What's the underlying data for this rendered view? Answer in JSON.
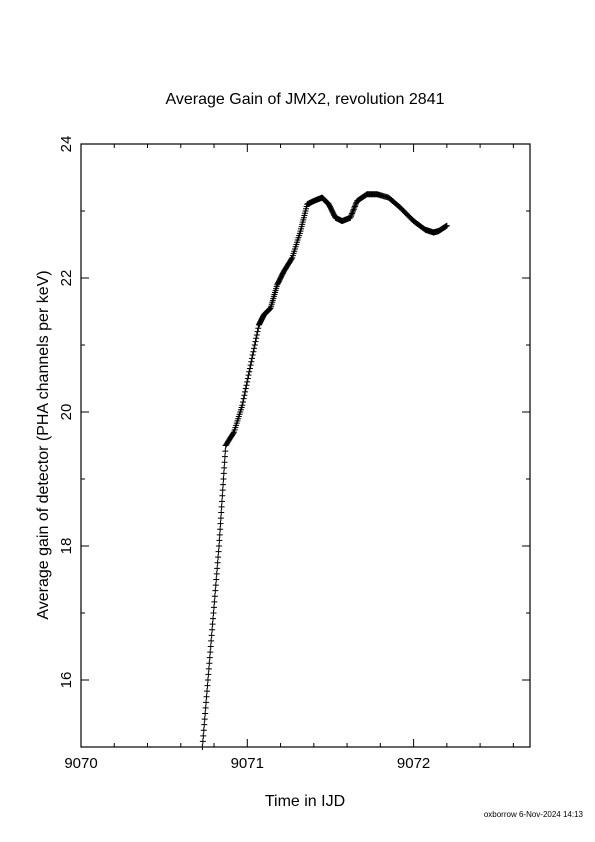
{
  "chart_data": {
    "type": "scatter",
    "marker": "+",
    "title": "Average Gain of JMX2, revolution 2841",
    "xlabel": "Time in IJD",
    "ylabel": "Average gain of detector (PHA channels per keV)",
    "xlim": [
      9070,
      9072.7
    ],
    "ylim": [
      15,
      24
    ],
    "x_ticks": [
      9070,
      9071,
      9072
    ],
    "y_ticks": [
      16,
      18,
      20,
      22,
      24
    ],
    "x_tick_labels": [
      "9070",
      "9071",
      "9072"
    ],
    "y_tick_labels": [
      "16",
      "18",
      "20",
      "22",
      "24"
    ],
    "grid": false,
    "series": [
      {
        "x": [
          9070.73,
          9070.78,
          9070.83,
          9070.87,
          9070.92,
          9070.97,
          9071.02,
          9071.07,
          9071.1,
          9071.14,
          9071.18,
          9071.22,
          9071.27,
          9071.32,
          9071.36,
          9071.4,
          9071.45,
          9071.49,
          9071.53,
          9071.57,
          9071.62,
          9071.66,
          9071.72,
          9071.78,
          9071.85,
          9071.92,
          9072.0,
          9072.07,
          9072.12,
          9072.15,
          9072.2
        ],
        "y": [
          15.0,
          16.5,
          18.0,
          19.5,
          19.7,
          20.1,
          20.7,
          21.3,
          21.45,
          21.55,
          21.9,
          22.1,
          22.3,
          22.7,
          23.1,
          23.15,
          23.2,
          23.1,
          22.9,
          22.85,
          22.9,
          23.15,
          23.25,
          23.25,
          23.2,
          23.05,
          22.85,
          22.72,
          22.68,
          22.7,
          22.78
        ]
      }
    ]
  },
  "footer": {
    "stamp": "oxborrow  6-Nov-2024 14:13"
  }
}
